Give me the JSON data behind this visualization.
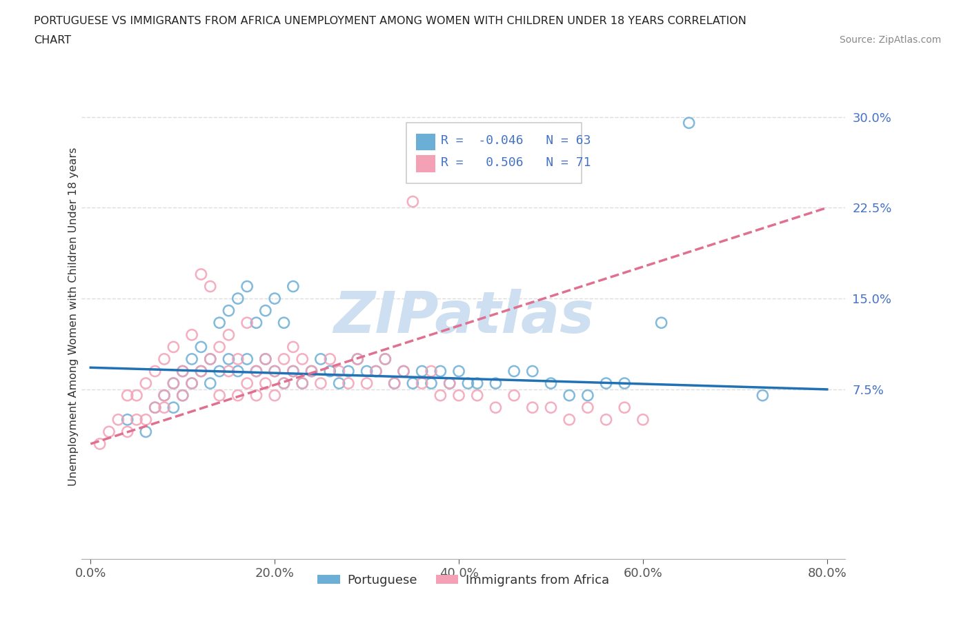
{
  "title_line1": "PORTUGUESE VS IMMIGRANTS FROM AFRICA UNEMPLOYMENT AMONG WOMEN WITH CHILDREN UNDER 18 YEARS CORRELATION",
  "title_line2": "CHART",
  "source": "Source: ZipAtlas.com",
  "ylabel": "Unemployment Among Women with Children Under 18 years",
  "xlim": [
    -0.01,
    0.82
  ],
  "ylim": [
    -0.065,
    0.335
  ],
  "yticks": [
    0.075,
    0.15,
    0.225,
    0.3
  ],
  "ytick_labels": [
    "7.5%",
    "15.0%",
    "22.5%",
    "30.0%"
  ],
  "xticks": [
    0.0,
    0.2,
    0.4,
    0.6,
    0.8
  ],
  "xtick_labels": [
    "0.0%",
    "20.0%",
    "40.0%",
    "60.0%",
    "80.0%"
  ],
  "blue_R": -0.046,
  "blue_N": 63,
  "pink_R": 0.506,
  "pink_N": 71,
  "blue_color": "#6baed6",
  "pink_color": "#f4a0b5",
  "blue_line_color": "#2171b5",
  "pink_line_color": "#e07090",
  "watermark": "ZIPatlas",
  "watermark_color": "#cddff0",
  "background_color": "#ffffff",
  "legend_box_color": "#eeeeee",
  "blue_line_y0": 0.093,
  "blue_line_y1": 0.075,
  "pink_line_x0": 0.0,
  "pink_line_y0": 0.03,
  "pink_line_x1": 0.46,
  "pink_line_y1": 0.148,
  "blue_x": [
    0.04,
    0.06,
    0.07,
    0.08,
    0.09,
    0.09,
    0.1,
    0.1,
    0.11,
    0.11,
    0.12,
    0.12,
    0.13,
    0.13,
    0.14,
    0.14,
    0.15,
    0.15,
    0.16,
    0.16,
    0.17,
    0.17,
    0.18,
    0.18,
    0.19,
    0.19,
    0.2,
    0.2,
    0.21,
    0.21,
    0.22,
    0.22,
    0.23,
    0.24,
    0.25,
    0.26,
    0.27,
    0.28,
    0.29,
    0.3,
    0.31,
    0.32,
    0.33,
    0.34,
    0.35,
    0.36,
    0.37,
    0.38,
    0.39,
    0.4,
    0.41,
    0.42,
    0.44,
    0.46,
    0.48,
    0.5,
    0.52,
    0.54,
    0.56,
    0.58,
    0.62,
    0.65,
    0.73
  ],
  "blue_y": [
    0.05,
    0.04,
    0.06,
    0.07,
    0.06,
    0.08,
    0.07,
    0.09,
    0.08,
    0.1,
    0.09,
    0.11,
    0.08,
    0.1,
    0.09,
    0.13,
    0.1,
    0.14,
    0.09,
    0.15,
    0.1,
    0.16,
    0.09,
    0.13,
    0.1,
    0.14,
    0.09,
    0.15,
    0.08,
    0.13,
    0.09,
    0.16,
    0.08,
    0.09,
    0.1,
    0.09,
    0.08,
    0.09,
    0.1,
    0.09,
    0.09,
    0.1,
    0.08,
    0.09,
    0.08,
    0.09,
    0.08,
    0.09,
    0.08,
    0.09,
    0.08,
    0.08,
    0.08,
    0.09,
    0.09,
    0.08,
    0.07,
    0.07,
    0.08,
    0.08,
    0.13,
    0.295,
    0.07
  ],
  "pink_x": [
    0.01,
    0.02,
    0.03,
    0.04,
    0.04,
    0.05,
    0.05,
    0.06,
    0.06,
    0.07,
    0.07,
    0.08,
    0.08,
    0.08,
    0.09,
    0.09,
    0.1,
    0.1,
    0.11,
    0.11,
    0.12,
    0.12,
    0.13,
    0.13,
    0.14,
    0.14,
    0.15,
    0.15,
    0.16,
    0.16,
    0.17,
    0.17,
    0.18,
    0.18,
    0.19,
    0.19,
    0.2,
    0.2,
    0.21,
    0.21,
    0.22,
    0.22,
    0.23,
    0.23,
    0.24,
    0.25,
    0.26,
    0.27,
    0.28,
    0.29,
    0.3,
    0.31,
    0.32,
    0.33,
    0.34,
    0.35,
    0.36,
    0.37,
    0.38,
    0.39,
    0.4,
    0.42,
    0.44,
    0.46,
    0.48,
    0.5,
    0.52,
    0.54,
    0.56,
    0.58,
    0.6
  ],
  "pink_y": [
    0.03,
    0.04,
    0.05,
    0.04,
    0.07,
    0.05,
    0.07,
    0.05,
    0.08,
    0.06,
    0.09,
    0.07,
    0.1,
    0.06,
    0.08,
    0.11,
    0.07,
    0.09,
    0.08,
    0.12,
    0.09,
    0.17,
    0.1,
    0.16,
    0.11,
    0.07,
    0.09,
    0.12,
    0.07,
    0.1,
    0.08,
    0.13,
    0.07,
    0.09,
    0.08,
    0.1,
    0.07,
    0.09,
    0.08,
    0.1,
    0.09,
    0.11,
    0.08,
    0.1,
    0.09,
    0.08,
    0.1,
    0.09,
    0.08,
    0.1,
    0.08,
    0.09,
    0.1,
    0.08,
    0.09,
    0.23,
    0.08,
    0.09,
    0.07,
    0.08,
    0.07,
    0.07,
    0.06,
    0.07,
    0.06,
    0.06,
    0.05,
    0.06,
    0.05,
    0.06,
    0.05
  ]
}
